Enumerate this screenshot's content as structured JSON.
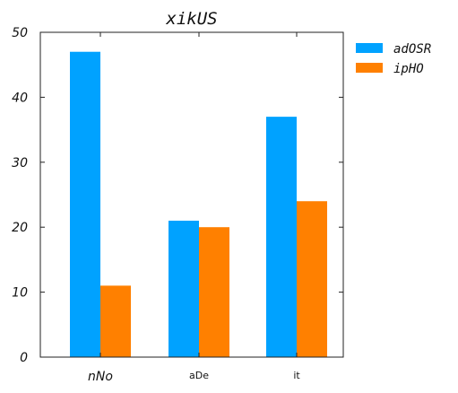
{
  "chart_data": {
    "type": "bar",
    "title": "xikUS",
    "categories": [
      "nNo",
      "aDe",
      "it"
    ],
    "series": [
      {
        "name": "adOSR",
        "values": [
          47,
          21,
          37
        ],
        "color": "#00a2ff"
      },
      {
        "name": "ipHO",
        "values": [
          11,
          20,
          24
        ],
        "color": "#ff8000"
      }
    ],
    "ylim": [
      0,
      50
    ],
    "yticks": [
      0,
      10,
      20,
      30,
      40,
      50
    ],
    "grid": false,
    "legend_position": "outside-right-top"
  }
}
